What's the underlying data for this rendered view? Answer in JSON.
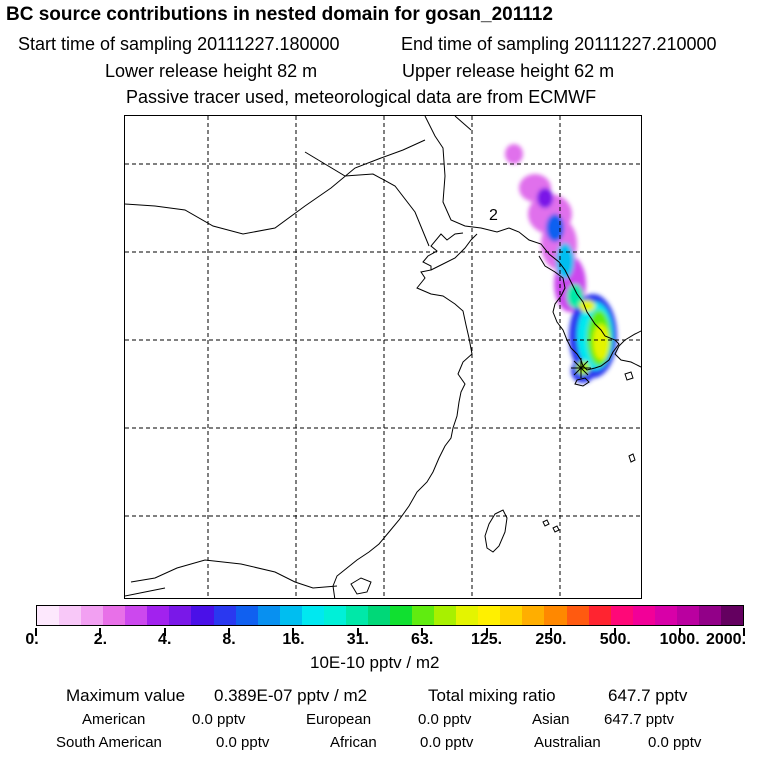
{
  "header": {
    "title": "BC  source contributions in nested domain for gosan_201112",
    "start_time": "Start time of sampling 20111227.180000",
    "end_time": "End time of sampling 20111227.210000",
    "lower_height": "Lower release height   82 m",
    "upper_height": "Upper release height   62 m",
    "tracer_note": "Passive tracer used, meteorological data are from ECMWF"
  },
  "map": {
    "label": "2",
    "receptor_marker": "station-star"
  },
  "colorbar": {
    "colors": [
      "#fde8fd",
      "#f8c8f8",
      "#f2a0f2",
      "#e870e8",
      "#cc48ee",
      "#a222ee",
      "#7a18e8",
      "#4a10e8",
      "#2a38f0",
      "#1060f0",
      "#0890f0",
      "#00bef0",
      "#00e8f0",
      "#00f0d8",
      "#00e8a8",
      "#00d878",
      "#10e030",
      "#60ec10",
      "#a8f000",
      "#e4f400",
      "#fff000",
      "#ffd400",
      "#ffae00",
      "#ff8800",
      "#ff5a10",
      "#ff2430",
      "#ff0878",
      "#f20098",
      "#d800a8",
      "#ba00a0",
      "#920088",
      "#640060"
    ],
    "tick_labels": [
      "0.",
      "2.",
      "4.",
      "8.",
      "16.",
      "31.",
      "63.",
      "125.",
      "250.",
      "500.",
      "1000.",
      "2000."
    ],
    "units": "10E-10 pptv / m2"
  },
  "stats": {
    "max_label": "Maximum value",
    "max_value": "0.389E-07 pptv / m2",
    "total_label": "Total mixing ratio",
    "total_value": "647.7 pptv",
    "regions": [
      {
        "name": "American",
        "value": "0.0 pptv"
      },
      {
        "name": "European",
        "value": "0.0 pptv"
      },
      {
        "name": "Asian",
        "value": "647.7 pptv"
      },
      {
        "name": "South American",
        "value": "0.0 pptv"
      },
      {
        "name": "African",
        "value": "0.0 pptv"
      },
      {
        "name": "Australian",
        "value": "0.0 pptv"
      }
    ]
  }
}
